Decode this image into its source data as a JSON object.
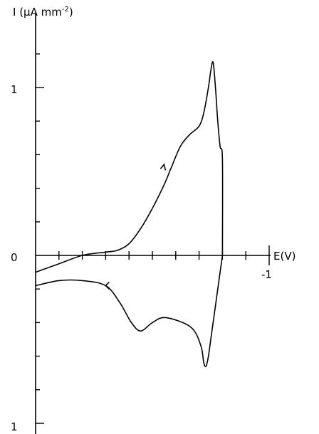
{
  "chart_data": {
    "type": "line",
    "title": "",
    "ylabel": "I (μA mm⁻²)",
    "ylabel_parts": {
      "main": "I (μA mm",
      "sup": "-2",
      "close": ")"
    },
    "xlabel": "E(V)",
    "x_tick_label": "-1",
    "y_tick_labels": {
      "top": "1",
      "zero": "0",
      "bottom": "1"
    },
    "xlim": [
      0,
      -1
    ],
    "ylim": [
      -1,
      1.3
    ],
    "x_minor_step": 0.1,
    "y_minor_step": 0.2,
    "grid": false,
    "series": [
      {
        "direction": "cathodic sweep",
        "x": [
          0,
          -0.1,
          -0.2,
          -0.3,
          -0.35,
          -0.4,
          -0.45,
          -0.5,
          -0.55,
          -0.58,
          -0.62,
          -0.66,
          -0.7,
          -0.72,
          -0.74,
          -0.75,
          -0.76,
          -0.77,
          -0.78,
          -0.79,
          -0.8,
          -0.8
        ],
        "y": [
          -0.1,
          -0.05,
          0.0,
          0.02,
          0.03,
          0.07,
          0.16,
          0.28,
          0.42,
          0.52,
          0.65,
          0.72,
          0.77,
          0.85,
          1.0,
          1.1,
          1.15,
          1.0,
          0.8,
          0.65,
          0.57,
          0.0
        ]
      },
      {
        "direction": "anodic sweep",
        "x": [
          -0.8,
          -0.79,
          -0.77,
          -0.75,
          -0.74,
          -0.73,
          -0.72,
          -0.71,
          -0.68,
          -0.63,
          -0.55,
          -0.5,
          -0.45,
          -0.41,
          -0.36,
          -0.3,
          -0.2,
          -0.1,
          0
        ],
        "y": [
          0.0,
          -0.1,
          -0.3,
          -0.5,
          -0.6,
          -0.66,
          -0.64,
          -0.55,
          -0.45,
          -0.4,
          -0.37,
          -0.4,
          -0.45,
          -0.4,
          -0.28,
          -0.18,
          -0.15,
          -0.15,
          -0.18
        ]
      }
    ],
    "arrows": [
      {
        "on": "cathodic sweep",
        "x": -0.55,
        "y": 0.52
      },
      {
        "on": "anodic sweep",
        "x": -0.3,
        "y": -0.18
      }
    ]
  }
}
